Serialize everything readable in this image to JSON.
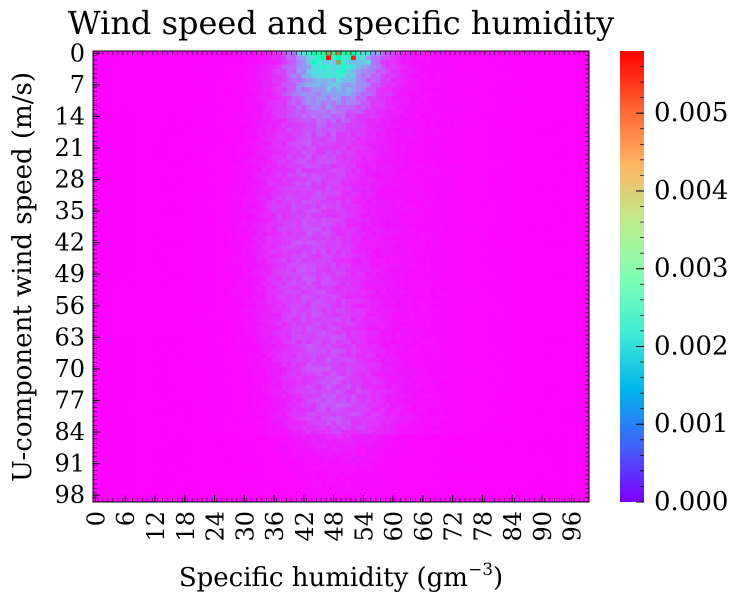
{
  "chart_data": {
    "type": "heatmap",
    "title": "Wind speed and specific humidity",
    "xlabel": "Specific humidity (gm",
    "xlabel_sup": "−3",
    "xlabel_end": ")",
    "ylabel": "U-component wind speed (m/s)",
    "x_ticks": [
      "0",
      "6",
      "12",
      "18",
      "24",
      "30",
      "36",
      "42",
      "48",
      "54",
      "60",
      "66",
      "72",
      "78",
      "84",
      "90",
      "96"
    ],
    "y_ticks": [
      "0",
      "7",
      "14",
      "21",
      "28",
      "35",
      "42",
      "49",
      "56",
      "63",
      "70",
      "77",
      "84",
      "91",
      "98"
    ],
    "xlim": [
      0,
      100
    ],
    "ylim": [
      100,
      0
    ],
    "colormap": "rainbow",
    "colorbar": {
      "range": [
        0,
        0.0058
      ],
      "ticks": [
        0.0,
        0.001,
        0.002,
        0.003,
        0.004,
        0.005
      ],
      "tick_labels": [
        "0.000",
        "0.001",
        "0.002",
        "0.003",
        "0.004",
        "0.005"
      ]
    },
    "hotspots": [
      {
        "x": 47,
        "y": 1,
        "value": 0.0058
      },
      {
        "x": 49,
        "y": 2,
        "value": 0.0045
      },
      {
        "x": 52,
        "y": 1,
        "value": 0.0055
      },
      {
        "x": 44,
        "y": 2,
        "value": 0.0028
      },
      {
        "x": 50,
        "y": 4,
        "value": 0.0026
      },
      {
        "x": 55,
        "y": 2,
        "value": 0.002
      },
      {
        "x": 48,
        "y": 8,
        "value": 0.0012
      },
      {
        "x": 47,
        "y": 35,
        "value": 0.0004
      },
      {
        "x": 40,
        "y": 65,
        "value": 0.0004
      }
    ]
  }
}
